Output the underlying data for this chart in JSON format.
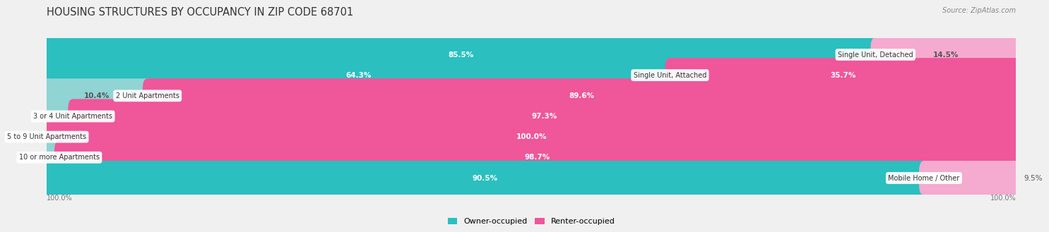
{
  "title": "HOUSING STRUCTURES BY OCCUPANCY IN ZIP CODE 68701",
  "source": "Source: ZipAtlas.com",
  "categories": [
    "Single Unit, Detached",
    "Single Unit, Attached",
    "2 Unit Apartments",
    "3 or 4 Unit Apartments",
    "5 to 9 Unit Apartments",
    "10 or more Apartments",
    "Mobile Home / Other"
  ],
  "owner_pct": [
    85.5,
    64.3,
    10.4,
    2.7,
    0.0,
    1.3,
    90.5
  ],
  "renter_pct": [
    14.5,
    35.7,
    89.6,
    97.3,
    100.0,
    98.7,
    9.5
  ],
  "owner_color_bright": "#2bbfbf",
  "owner_color_light": "#90d4d4",
  "renter_color_bright": "#f0569a",
  "renter_color_light": "#f5aacf",
  "row_bg_color": "#f5f5f5",
  "fig_bg_color": "#f0f0f0",
  "title_color": "#333333",
  "source_color": "#888888",
  "label_color_dark": "#555555",
  "title_fontsize": 10.5,
  "source_fontsize": 7,
  "bar_label_fontsize": 7.5,
  "cat_label_fontsize": 7,
  "legend_fontsize": 8
}
